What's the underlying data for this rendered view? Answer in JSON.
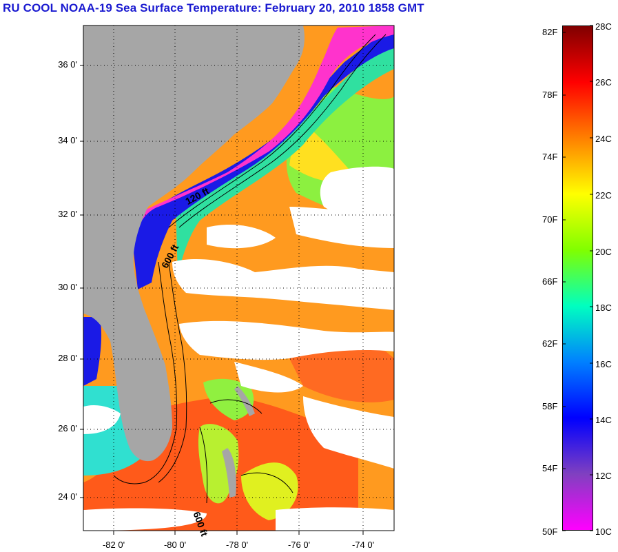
{
  "title": "RU COOL  NOAA-19  Sea Surface Temperature:  February 20, 2010 1858 GMT",
  "map": {
    "lat_labels": [
      "36 0'",
      "34 0'",
      "32 0'",
      "30 0'",
      "28 0'",
      "26 0'",
      "24 0'"
    ],
    "lon_labels": [
      "-82 0'",
      "-80 0'",
      "-78 0'",
      "-76 0'",
      "-74 0'"
    ],
    "contour_labels": [
      "120 ft",
      "600 ft",
      "600 ft"
    ],
    "colors": {
      "land": "#a6a6a6",
      "cloud": "#ffffff"
    }
  },
  "colorbar": {
    "fahrenheit": [
      "82F",
      "78F",
      "74F",
      "70F",
      "66F",
      "62F",
      "58F",
      "54F",
      "50F"
    ],
    "celsius": [
      "28C",
      "26C",
      "24C",
      "22C",
      "20C",
      "18C",
      "16C",
      "14C",
      "12C",
      "10C"
    ],
    "gradient": [
      "#800000",
      "#ff0000",
      "#ff8000",
      "#ffff00",
      "#80ff00",
      "#00ffc0",
      "#0080ff",
      "#0000ff",
      "#8040c0",
      "#ff00ff"
    ]
  }
}
